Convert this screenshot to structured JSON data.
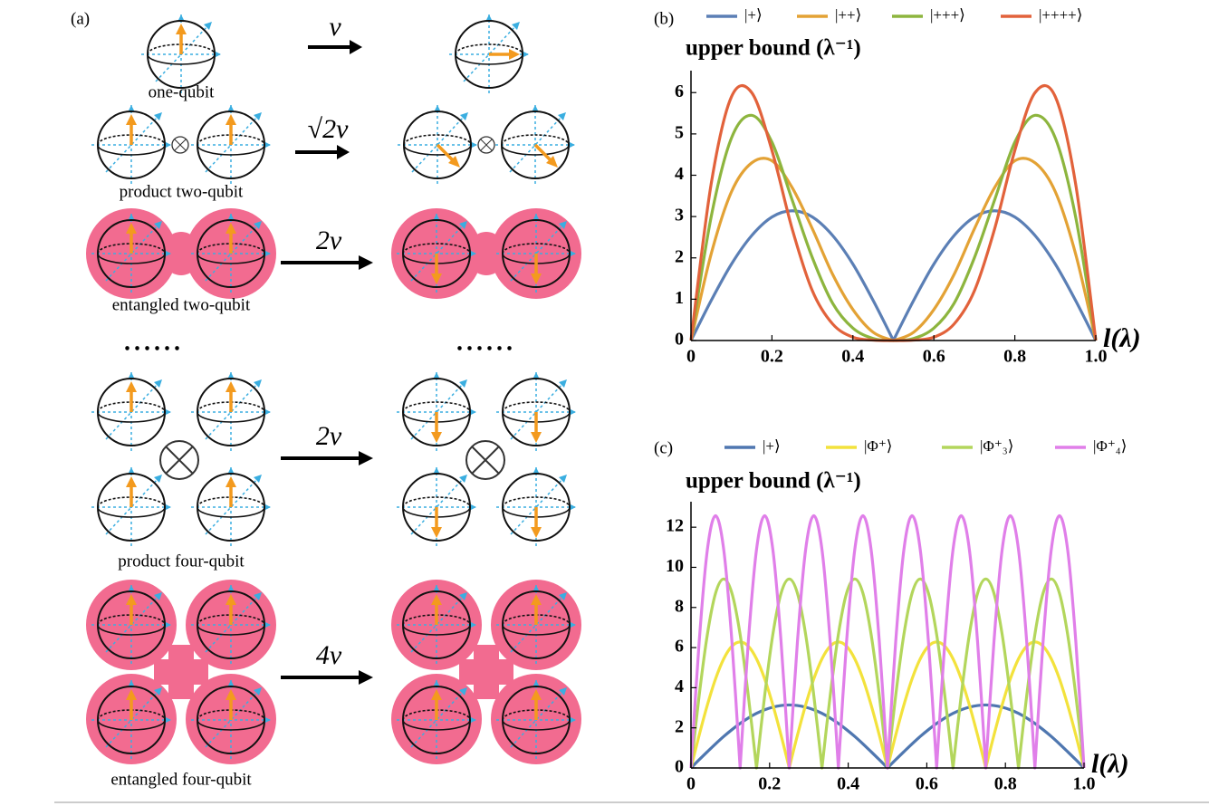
{
  "panel_a": {
    "label": "(a)",
    "ellipsis": [
      "......",
      "......"
    ],
    "rows": [
      {
        "caption": "one-qubit",
        "rate": "v"
      },
      {
        "caption": "product two-qubit",
        "rate": "√2v"
      },
      {
        "caption": "entangled two-qubit",
        "rate": "2v"
      },
      {
        "caption": "product four-qubit",
        "rate": "2v"
      },
      {
        "caption": "entangled four-qubit",
        "rate": "4v"
      }
    ]
  },
  "chart_data": [
    {
      "type": "line",
      "panel_label": "(b)",
      "ylabel": "upper bound (λ⁻¹)",
      "xlabel": "l(λ)",
      "x": [
        0,
        0.05,
        0.1,
        0.15,
        0.2,
        0.25,
        0.3,
        0.35,
        0.4,
        0.45,
        0.5,
        0.55,
        0.6,
        0.65,
        0.7,
        0.75,
        0.8,
        0.85,
        0.9,
        0.95,
        1
      ],
      "xlim": [
        0,
        1
      ],
      "xticks": [
        0,
        0.2,
        0.4,
        0.6,
        0.8,
        {
          "value": 1,
          "label": "1.0"
        }
      ],
      "ylim": [
        0,
        6.4
      ],
      "yticks": [
        0,
        1,
        2,
        3,
        4,
        5,
        6
      ],
      "series": [
        {
          "name": "|+⟩",
          "color": "#5b7fb5",
          "values": [
            0,
            0.97,
            1.85,
            2.54,
            2.99,
            3.14,
            2.99,
            2.54,
            1.85,
            0.97,
            0,
            0.97,
            1.85,
            2.54,
            2.99,
            3.14,
            2.99,
            2.54,
            1.85,
            0.97,
            0
          ]
        },
        {
          "name": "|++⟩",
          "color": "#e3a235",
          "values": [
            0,
            2.1,
            3.6,
            4.3,
            4.35,
            3.7,
            2.7,
            1.6,
            0.75,
            0.2,
            0,
            0.2,
            0.75,
            1.6,
            2.7,
            3.7,
            4.35,
            4.3,
            3.6,
            2.1,
            0
          ]
        },
        {
          "name": "|+++⟩",
          "color": "#8db53e",
          "values": [
            0,
            3.0,
            4.9,
            5.45,
            4.8,
            3.4,
            2.0,
            0.9,
            0.3,
            0.05,
            0,
            0.05,
            0.3,
            0.9,
            2.0,
            3.4,
            4.8,
            5.45,
            4.9,
            3.0,
            0
          ]
        },
        {
          "name": "|++++⟩",
          "color": "#e2623b",
          "values": [
            0,
            3.8,
            5.9,
            6.0,
            4.6,
            2.7,
            1.2,
            0.4,
            0.08,
            0.01,
            0,
            0.01,
            0.08,
            0.4,
            1.2,
            2.7,
            4.6,
            6.0,
            5.9,
            3.8,
            0
          ]
        }
      ]
    },
    {
      "type": "line",
      "panel_label": "(c)",
      "ylabel": "upper bound (λ⁻¹)",
      "xlabel": "l(λ)",
      "x": [
        0,
        0.0208,
        0.0417,
        0.0625,
        0.0833,
        0.1042,
        0.125,
        0.1458,
        0.1667,
        0.1875,
        0.2083,
        0.2292,
        0.25,
        0.2708,
        0.2917,
        0.3125,
        0.3333,
        0.3542,
        0.375,
        0.3958,
        0.4167,
        0.4375,
        0.4583,
        0.4792,
        0.5,
        0.5208,
        0.5417,
        0.5625,
        0.5833,
        0.6042,
        0.625,
        0.6458,
        0.6667,
        0.6875,
        0.7083,
        0.7292,
        0.75,
        0.7708,
        0.7917,
        0.8125,
        0.8333,
        0.8542,
        0.875,
        0.8958,
        0.9167,
        0.9375,
        0.9583,
        0.9792,
        1
      ],
      "xlim": [
        0,
        1
      ],
      "xticks": [
        0,
        0.2,
        0.4,
        0.6,
        0.8,
        {
          "value": 1,
          "label": "1.0"
        }
      ],
      "ylim": [
        0,
        13
      ],
      "yticks": [
        0,
        2,
        4,
        6,
        8,
        10,
        12
      ],
      "series": [
        {
          "name": "|+⟩",
          "color": "#4f77b0",
          "values": [
            0,
            0.41,
            0.81,
            1.2,
            1.57,
            1.91,
            2.22,
            2.49,
            2.72,
            2.9,
            3.03,
            3.11,
            3.14,
            3.11,
            3.03,
            2.9,
            2.72,
            2.49,
            2.22,
            1.91,
            1.57,
            1.2,
            0.81,
            0.41,
            0,
            0.41,
            0.81,
            1.2,
            1.57,
            1.91,
            2.22,
            2.49,
            2.72,
            2.9,
            3.03,
            3.11,
            3.14,
            3.11,
            3.03,
            2.9,
            2.72,
            2.49,
            2.22,
            1.91,
            1.57,
            1.2,
            0.81,
            0.41,
            0
          ]
        },
        {
          "name": "|Φ⁺⟩",
          "color": "#f3e23c",
          "values": [
            0,
            1.63,
            3.14,
            4.44,
            5.44,
            6.07,
            6.28,
            6.07,
            5.44,
            4.44,
            3.14,
            1.63,
            0,
            1.63,
            3.14,
            4.44,
            5.44,
            6.07,
            6.28,
            6.07,
            5.44,
            4.44,
            3.14,
            1.63,
            0,
            1.63,
            3.14,
            4.44,
            5.44,
            6.07,
            6.28,
            6.07,
            5.44,
            4.44,
            3.14,
            1.63,
            0,
            1.63,
            3.14,
            4.44,
            5.44,
            6.07,
            6.28,
            6.07,
            5.44,
            4.44,
            3.14,
            1.63,
            0
          ]
        },
        {
          "name": "|Φ⁺₃⟩",
          "color": "#b3d65c",
          "values": [
            0,
            3.61,
            6.66,
            8.71,
            9.42,
            8.71,
            6.66,
            3.61,
            0,
            3.61,
            6.66,
            8.71,
            9.42,
            8.71,
            6.66,
            3.61,
            0,
            3.61,
            6.66,
            8.71,
            9.42,
            8.71,
            6.66,
            3.61,
            0,
            3.61,
            6.66,
            8.71,
            9.42,
            8.71,
            6.66,
            3.61,
            0,
            3.61,
            6.66,
            8.71,
            9.42,
            8.71,
            6.66,
            3.61,
            0,
            3.61,
            6.66,
            8.71,
            9.42,
            8.71,
            6.66,
            3.61,
            0
          ]
        },
        {
          "name": "|Φ⁺₄⟩",
          "color": "#e07fe9",
          "values": [
            0,
            6.28,
            10.88,
            12.57,
            10.88,
            6.28,
            0,
            6.28,
            10.88,
            12.57,
            10.88,
            6.28,
            0,
            6.28,
            10.88,
            12.57,
            10.88,
            6.28,
            0,
            6.28,
            10.88,
            12.57,
            10.88,
            6.28,
            0,
            6.28,
            10.88,
            12.57,
            10.88,
            6.28,
            0,
            6.28,
            10.88,
            12.57,
            10.88,
            6.28,
            0,
            6.28,
            10.88,
            12.57,
            10.88,
            6.28,
            0,
            6.28,
            10.88,
            12.57,
            10.88,
            6.28,
            0
          ]
        }
      ]
    }
  ]
}
